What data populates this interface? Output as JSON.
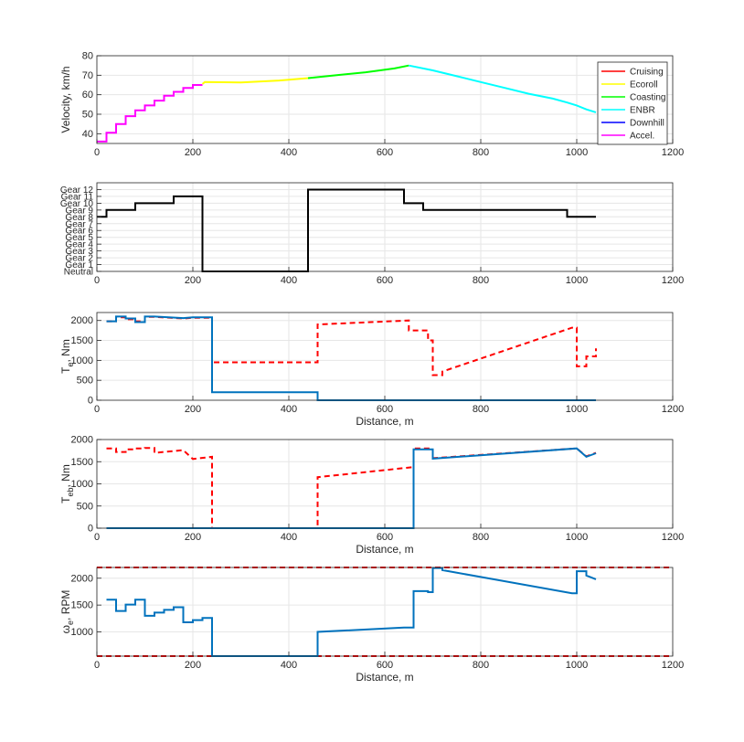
{
  "chart_data": [
    {
      "type": "line",
      "ylabel": "Velocity, km/h",
      "xlabel": "",
      "xlim": [
        0,
        1200
      ],
      "ylim": [
        35,
        80
      ],
      "xticks": [
        0,
        200,
        400,
        600,
        800,
        1000,
        1200
      ],
      "yticks": [
        40,
        50,
        60,
        70,
        80
      ],
      "grid": true,
      "legend_position": "top-right",
      "legend": [
        {
          "name": "Cruising",
          "color": "#ff0000"
        },
        {
          "name": "Ecoroll",
          "color": "#ffff00"
        },
        {
          "name": "Coasting",
          "color": "#00ff00"
        },
        {
          "name": "ENBR",
          "color": "#00ffff"
        },
        {
          "name": "Downhill",
          "color": "#0000ff"
        },
        {
          "name": "Accel.",
          "color": "#ff00ff"
        }
      ],
      "series": [
        {
          "name": "Accel.",
          "color": "#ff00ff",
          "style": "solid",
          "x": [
            0,
            20,
            20,
            40,
            40,
            60,
            60,
            80,
            80,
            100,
            100,
            120,
            120,
            140,
            140,
            160,
            160,
            180,
            180,
            200,
            200,
            220
          ],
          "y": [
            36,
            36,
            40.5,
            40.5,
            45,
            45,
            49,
            49,
            52,
            52,
            54.5,
            54.5,
            57,
            57,
            59.5,
            59.5,
            61.5,
            61.5,
            63.5,
            63.5,
            65,
            65
          ]
        },
        {
          "name": "Ecoroll",
          "color": "#ffff00",
          "style": "solid",
          "x": [
            220,
            225,
            300,
            380,
            440
          ],
          "y": [
            65.5,
            66.5,
            66.3,
            67.3,
            68.5
          ]
        },
        {
          "name": "Coasting",
          "color": "#00ff00",
          "style": "solid",
          "x": [
            440,
            500,
            560,
            620,
            650
          ],
          "y": [
            68.5,
            70,
            71.5,
            73.5,
            75
          ]
        },
        {
          "name": "ENBR",
          "color": "#00ffff",
          "style": "solid",
          "x": [
            650,
            700,
            750,
            800,
            850,
            900,
            950,
            980,
            1000,
            1020,
            1040
          ],
          "y": [
            75,
            72.5,
            69.5,
            66.5,
            63.5,
            60.5,
            58,
            56,
            54.5,
            52.5,
            51
          ]
        }
      ]
    },
    {
      "type": "line",
      "xlabel": "",
      "ylabel": "",
      "xlim": [
        0,
        1200
      ],
      "ylim": [
        0,
        13
      ],
      "xticks": [
        0,
        200,
        400,
        600,
        800,
        1000,
        1200
      ],
      "yticks": [
        0,
        1,
        2,
        3,
        4,
        5,
        6,
        7,
        8,
        9,
        10,
        11,
        12
      ],
      "ytick_labels": [
        "Neutral",
        "Gear 1",
        "Gear 2",
        "Gear 3",
        "Gear 4",
        "Gear 5",
        "Gear 6",
        "Gear 7",
        "Gear 8",
        "Gear 9",
        "Gear 10",
        "Gear 11",
        "Gear 12"
      ],
      "grid": true,
      "series": [
        {
          "color": "#000000",
          "style": "solid",
          "x": [
            0,
            20,
            20,
            80,
            80,
            160,
            160,
            220,
            220,
            440,
            440,
            640,
            640,
            680,
            680,
            980,
            980,
            1040
          ],
          "y": [
            8,
            8,
            9,
            9,
            10,
            10,
            11,
            11,
            0,
            0,
            12,
            12,
            10,
            10,
            9,
            9,
            8,
            8
          ]
        }
      ]
    },
    {
      "type": "line",
      "ylabel": "T_e, Nm",
      "xlabel": "Distance, m",
      "xlim": [
        0,
        1200
      ],
      "ylim": [
        0,
        2200
      ],
      "xticks": [
        0,
        200,
        400,
        600,
        800,
        1000,
        1200
      ],
      "yticks": [
        0,
        500,
        1000,
        1500,
        2000
      ],
      "grid": true,
      "series": [
        {
          "color": "#ff0000",
          "style": "dashed",
          "x": [
            20,
            40,
            40,
            60,
            60,
            80,
            80,
            100,
            100,
            120,
            120,
            180,
            180,
            200,
            200,
            240,
            240,
            460,
            460,
            650,
            650,
            690,
            690,
            700,
            700,
            720,
            720,
            990,
            990,
            1000,
            1000,
            1020,
            1020,
            1040,
            1040
          ],
          "y": [
            1980,
            1980,
            2080,
            2080,
            2030,
            2030,
            1980,
            1980,
            2090,
            2090,
            2090,
            2050,
            2050,
            2070,
            2070,
            2070,
            950,
            950,
            1900,
            2000,
            1750,
            1750,
            1500,
            1500,
            630,
            630,
            720,
            1820,
            1820,
            1820,
            850,
            850,
            1100,
            1100,
            1300
          ]
        },
        {
          "color": "#0072bd",
          "style": "solid",
          "x": [
            20,
            40,
            40,
            60,
            60,
            80,
            80,
            100,
            100,
            120,
            120,
            180,
            180,
            200,
            200,
            240,
            240,
            460,
            460,
            1040
          ],
          "y": [
            1980,
            1980,
            2100,
            2100,
            2050,
            2050,
            1960,
            1960,
            2100,
            2100,
            2100,
            2060,
            2060,
            2080,
            2080,
            2080,
            200,
            200,
            0,
            0
          ]
        }
      ]
    },
    {
      "type": "line",
      "ylabel": "T_eb, Nm",
      "xlabel": "Distance, m",
      "xlim": [
        0,
        1200
      ],
      "ylim": [
        0,
        2000
      ],
      "xticks": [
        0,
        200,
        400,
        600,
        800,
        1000,
        1200
      ],
      "yticks": [
        0,
        500,
        1000,
        1500,
        2000
      ],
      "grid": true,
      "series": [
        {
          "color": "#ff0000",
          "style": "dashed",
          "x": [
            20,
            40,
            40,
            60,
            60,
            80,
            80,
            100,
            100,
            120,
            120,
            180,
            180,
            200,
            200,
            240,
            240,
            460,
            460,
            660,
            660,
            700,
            700,
            1000,
            1000,
            1020,
            1020,
            1040
          ],
          "y": [
            1800,
            1800,
            1720,
            1720,
            1780,
            1780,
            1800,
            1800,
            1810,
            1810,
            1700,
            1760,
            1760,
            1560,
            1560,
            1610,
            0,
            0,
            1150,
            1380,
            1800,
            1800,
            1580,
            1800,
            1800,
            1620,
            1620,
            1700
          ]
        },
        {
          "color": "#0072bd",
          "style": "solid",
          "x": [
            20,
            660,
            660,
            700,
            700,
            1000,
            1000,
            1020,
            1020,
            1040
          ],
          "y": [
            0,
            0,
            1780,
            1780,
            1570,
            1800,
            1800,
            1610,
            1610,
            1690
          ]
        }
      ]
    },
    {
      "type": "line",
      "ylabel": "ω_e, RPM",
      "xlabel": "Distance, m",
      "xlim": [
        0,
        1200
      ],
      "ylim": [
        550,
        2200
      ],
      "xticks": [
        0,
        200,
        400,
        600,
        800,
        1000,
        1200
      ],
      "yticks": [
        1000,
        1500,
        2000
      ],
      "grid": true,
      "series": [
        {
          "color": "#ff0000",
          "style": "dashed",
          "x": [
            0,
            1200
          ],
          "y": [
            2200,
            2200
          ]
        },
        {
          "color": "#ff0000",
          "style": "dashed",
          "x": [
            0,
            1200
          ],
          "y": [
            550,
            550
          ]
        },
        {
          "color": "#0072bd",
          "style": "solid",
          "x": [
            20,
            40,
            40,
            60,
            60,
            80,
            80,
            100,
            100,
            120,
            120,
            140,
            140,
            160,
            160,
            180,
            180,
            200,
            200,
            220,
            220,
            240,
            240,
            460,
            460,
            640,
            640,
            660,
            660,
            690,
            690,
            700,
            700,
            720,
            720,
            990,
            990,
            1000,
            1000,
            1020,
            1020,
            1040
          ],
          "y": [
            1600,
            1600,
            1390,
            1390,
            1510,
            1510,
            1600,
            1600,
            1300,
            1300,
            1360,
            1360,
            1410,
            1410,
            1460,
            1460,
            1180,
            1180,
            1220,
            1220,
            1260,
            1260,
            550,
            550,
            1000,
            1080,
            1080,
            1080,
            1760,
            1760,
            1740,
            1740,
            2190,
            2190,
            2150,
            1720,
            1720,
            1720,
            2130,
            2130,
            2050,
            1980
          ]
        }
      ]
    }
  ]
}
